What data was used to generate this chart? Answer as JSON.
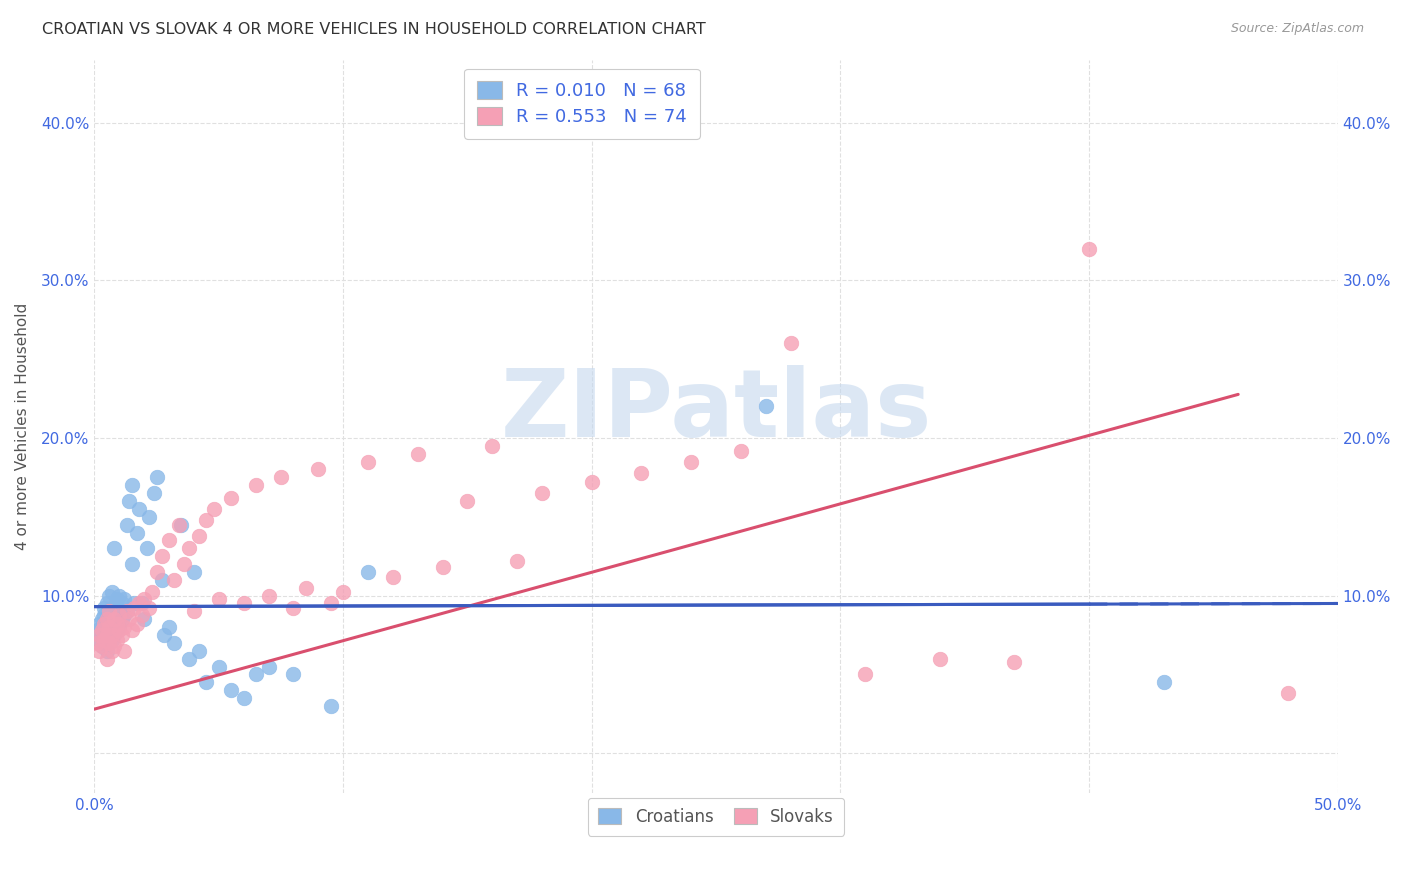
{
  "title": "CROATIAN VS SLOVAK 4 OR MORE VEHICLES IN HOUSEHOLD CORRELATION CHART",
  "source": "Source: ZipAtlas.com",
  "ylabel": "4 or more Vehicles in Household",
  "xlabel_croatians": "Croatians",
  "xlabel_slovaks": "Slovaks",
  "xlim": [
    0.0,
    0.5
  ],
  "ylim": [
    -0.025,
    0.44
  ],
  "xticks": [
    0.0,
    0.5
  ],
  "xticklabels": [
    "0.0%",
    "50.0%"
  ],
  "yticks": [
    0.0,
    0.1,
    0.2,
    0.3,
    0.4
  ],
  "yticklabels": [
    "",
    "10.0%",
    "20.0%",
    "30.0%",
    "40.0%"
  ],
  "croatian_color": "#89b8e8",
  "slovak_color": "#f5a0b5",
  "trendline_croatian_color": "#3a5bbf",
  "trendline_slovak_color": "#d94f6e",
  "R_croatian": 0.01,
  "N_croatian": 68,
  "R_slovak": 0.553,
  "N_slovak": 74,
  "croatian_trendline": [
    [
      0.0,
      0.093
    ],
    [
      0.5,
      0.095
    ]
  ],
  "slovak_trendline": [
    [
      0.0,
      0.028
    ],
    [
      0.5,
      0.245
    ]
  ],
  "croatian_x": [
    0.001,
    0.002,
    0.002,
    0.003,
    0.003,
    0.003,
    0.004,
    0.004,
    0.004,
    0.004,
    0.005,
    0.005,
    0.005,
    0.005,
    0.006,
    0.006,
    0.006,
    0.006,
    0.007,
    0.007,
    0.007,
    0.007,
    0.008,
    0.008,
    0.008,
    0.009,
    0.009,
    0.009,
    0.01,
    0.01,
    0.01,
    0.011,
    0.011,
    0.012,
    0.012,
    0.013,
    0.013,
    0.014,
    0.015,
    0.015,
    0.016,
    0.017,
    0.018,
    0.019,
    0.02,
    0.021,
    0.022,
    0.024,
    0.025,
    0.027,
    0.028,
    0.03,
    0.032,
    0.035,
    0.038,
    0.04,
    0.042,
    0.045,
    0.05,
    0.055,
    0.06,
    0.065,
    0.07,
    0.08,
    0.095,
    0.11,
    0.27,
    0.43
  ],
  "croatian_y": [
    0.078,
    0.072,
    0.082,
    0.068,
    0.075,
    0.085,
    0.07,
    0.08,
    0.088,
    0.092,
    0.065,
    0.075,
    0.085,
    0.095,
    0.07,
    0.08,
    0.09,
    0.1,
    0.072,
    0.082,
    0.092,
    0.102,
    0.075,
    0.085,
    0.13,
    0.078,
    0.088,
    0.098,
    0.08,
    0.09,
    0.1,
    0.085,
    0.095,
    0.088,
    0.098,
    0.09,
    0.145,
    0.16,
    0.12,
    0.17,
    0.095,
    0.14,
    0.155,
    0.095,
    0.085,
    0.13,
    0.15,
    0.165,
    0.175,
    0.11,
    0.075,
    0.08,
    0.07,
    0.145,
    0.06,
    0.115,
    0.065,
    0.045,
    0.055,
    0.04,
    0.035,
    0.05,
    0.055,
    0.05,
    0.03,
    0.115,
    0.22,
    0.045
  ],
  "slovak_x": [
    0.001,
    0.002,
    0.002,
    0.003,
    0.003,
    0.004,
    0.004,
    0.005,
    0.005,
    0.005,
    0.006,
    0.006,
    0.006,
    0.007,
    0.007,
    0.008,
    0.008,
    0.009,
    0.009,
    0.01,
    0.01,
    0.011,
    0.012,
    0.012,
    0.013,
    0.014,
    0.015,
    0.016,
    0.017,
    0.018,
    0.019,
    0.02,
    0.022,
    0.023,
    0.025,
    0.027,
    0.03,
    0.032,
    0.034,
    0.036,
    0.038,
    0.04,
    0.042,
    0.045,
    0.048,
    0.05,
    0.055,
    0.06,
    0.065,
    0.07,
    0.075,
    0.08,
    0.085,
    0.09,
    0.095,
    0.1,
    0.11,
    0.12,
    0.13,
    0.14,
    0.15,
    0.16,
    0.17,
    0.18,
    0.2,
    0.22,
    0.24,
    0.26,
    0.28,
    0.31,
    0.34,
    0.37,
    0.4,
    0.48
  ],
  "slovak_y": [
    0.07,
    0.065,
    0.075,
    0.068,
    0.078,
    0.072,
    0.082,
    0.06,
    0.075,
    0.085,
    0.07,
    0.08,
    0.09,
    0.065,
    0.075,
    0.068,
    0.085,
    0.072,
    0.082,
    0.078,
    0.088,
    0.075,
    0.065,
    0.08,
    0.09,
    0.085,
    0.078,
    0.092,
    0.082,
    0.095,
    0.088,
    0.098,
    0.092,
    0.102,
    0.115,
    0.125,
    0.135,
    0.11,
    0.145,
    0.12,
    0.13,
    0.09,
    0.138,
    0.148,
    0.155,
    0.098,
    0.162,
    0.095,
    0.17,
    0.1,
    0.175,
    0.092,
    0.105,
    0.18,
    0.095,
    0.102,
    0.185,
    0.112,
    0.19,
    0.118,
    0.16,
    0.195,
    0.122,
    0.165,
    0.172,
    0.178,
    0.185,
    0.192,
    0.26,
    0.05,
    0.06,
    0.058,
    0.32,
    0.038
  ],
  "watermark_text": "ZIPatlas",
  "watermark_color": "#c5d8ee",
  "watermark_alpha": 0.6,
  "background_color": "#ffffff",
  "grid_color": "#e0e0e0",
  "grid_style": "--",
  "tick_color": "#4169e1",
  "ylabel_color": "#555555",
  "title_color": "#333333",
  "source_color": "#999999"
}
